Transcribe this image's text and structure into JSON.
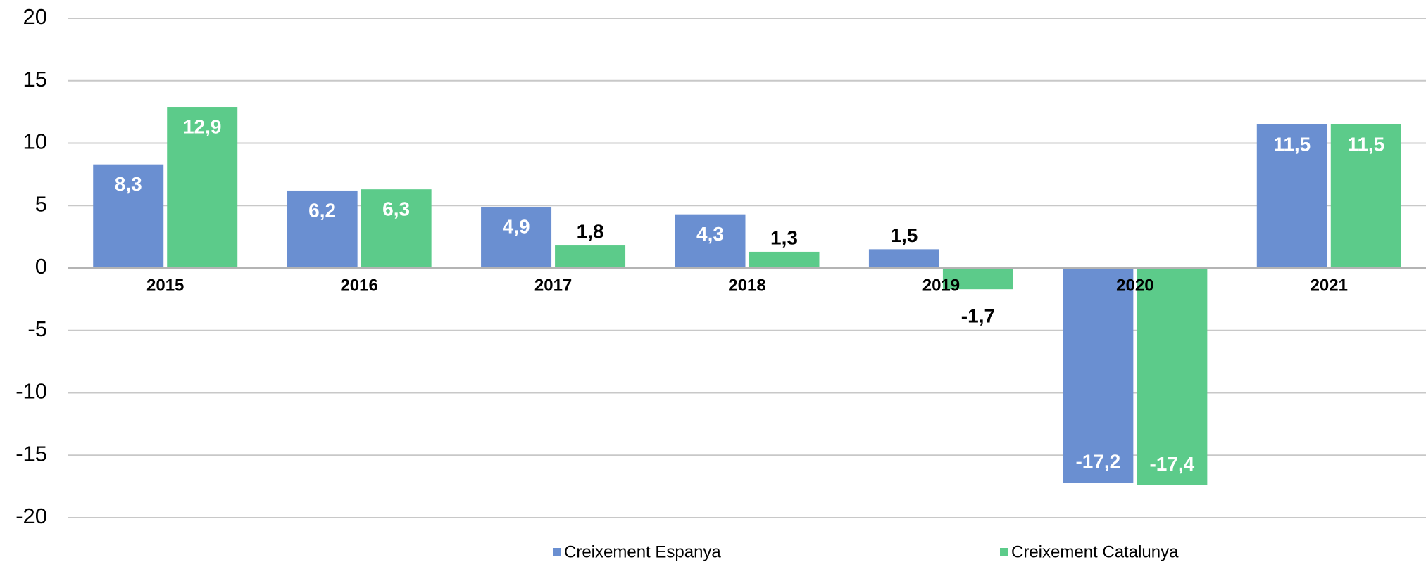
{
  "chart_data": {
    "type": "bar",
    "categories": [
      "2015",
      "2016",
      "2017",
      "2018",
      "2019",
      "2020",
      "2021"
    ],
    "series": [
      {
        "name": "Creixement Espanya",
        "color": "#6a8fd1",
        "values": [
          8.3,
          6.2,
          4.9,
          4.3,
          1.5,
          -17.2,
          11.5
        ],
        "value_labels": [
          "8,3",
          "6,2",
          "4,9",
          "4,3",
          "1,5",
          "-17,2",
          "11,5"
        ]
      },
      {
        "name": "Creixement Catalunya",
        "color": "#5ccb8a",
        "values": [
          12.9,
          6.3,
          1.8,
          1.3,
          -1.7,
          -17.4,
          11.5
        ],
        "value_labels": [
          "12,9",
          "6,3",
          "1,8",
          "1,3",
          "-1,7",
          "-17,4",
          "11,5"
        ]
      }
    ],
    "ylim": [
      -20,
      20
    ],
    "yticks": [
      -20,
      -15,
      -10,
      -5,
      0,
      5,
      10,
      15,
      20
    ],
    "grid": true,
    "legend": "bottom"
  }
}
